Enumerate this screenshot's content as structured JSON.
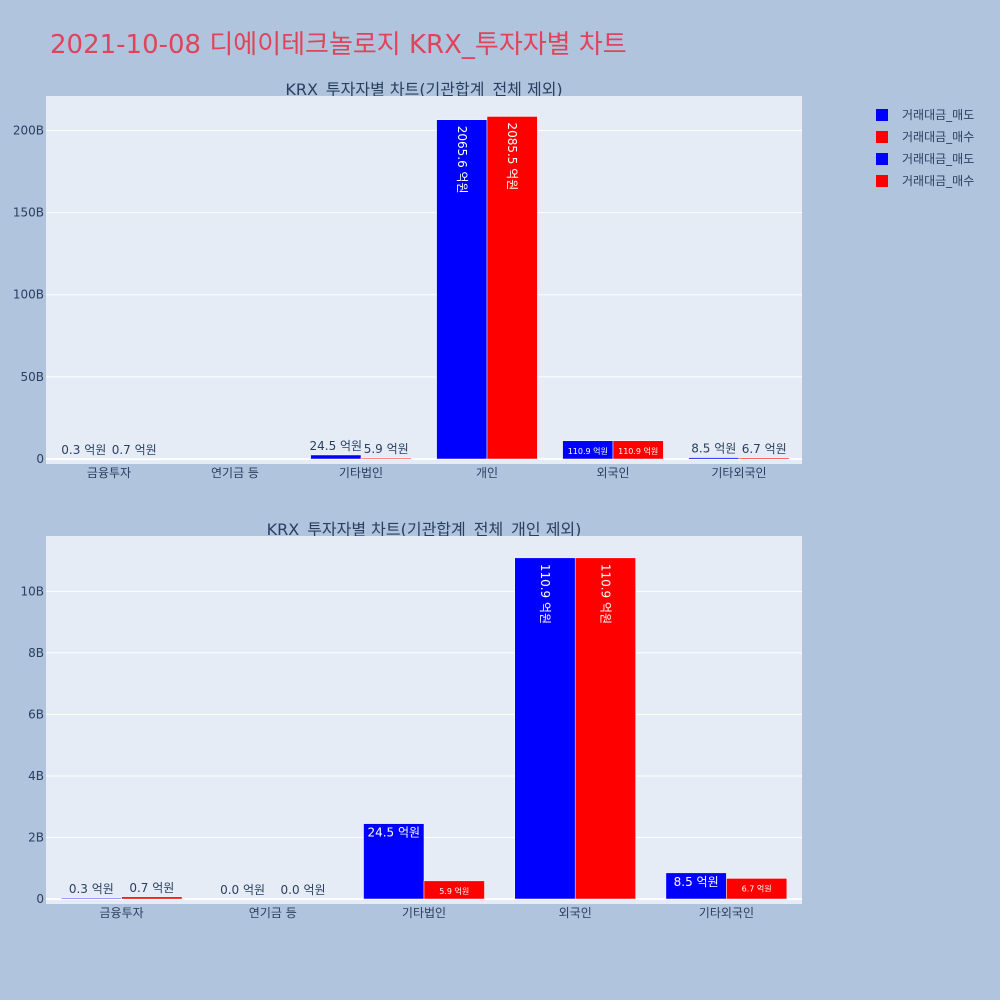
{
  "page_title": "2021-10-08 디에이테크놀로지 KRX_투자자별 차트",
  "colors": {
    "sell": "#0000ff",
    "buy": "#ff0000",
    "plot_bg": "#e5ecf6",
    "page_bg": "#b0c4de",
    "title": "#e0445a"
  },
  "legend": {
    "placement": "top-right",
    "entries": [
      {
        "label": "거래대금_매도",
        "color": "#0000ff"
      },
      {
        "label": "거래대금_매수",
        "color": "#ff0000"
      },
      {
        "label": "거래대금_매도",
        "color": "#0000ff"
      },
      {
        "label": "거래대금_매수",
        "color": "#ff0000"
      }
    ]
  },
  "chart_data": [
    {
      "type": "bar",
      "title": "KRX_투자자별 차트(기관합계_전체 제외)",
      "categories": [
        "금융투자",
        "연기금 등",
        "기타법인",
        "개인",
        "외국인",
        "기타외국인"
      ],
      "series": [
        {
          "name": "거래대금_매도",
          "values": [
            0.03,
            0,
            2.45,
            206.56,
            11.09,
            0.85
          ],
          "labels": [
            "0.3 억원",
            "",
            "24.5 억원",
            "2065.6 억원",
            "110.9 억원",
            "8.5 억원"
          ]
        },
        {
          "name": "거래대금_매수",
          "values": [
            0.07,
            0,
            0.59,
            208.55,
            11.09,
            0.67
          ],
          "labels": [
            "0.7 억원",
            "",
            "5.9 억원",
            "2085.5 억원",
            "110.9 억원",
            "6.7 억원"
          ]
        }
      ],
      "yticks": [
        0,
        50,
        100,
        150,
        200
      ],
      "ytick_labels": [
        "0",
        "50B",
        "100B",
        "150B",
        "200B"
      ],
      "ylim": [
        0,
        221
      ],
      "grid": true
    },
    {
      "type": "bar",
      "title": "KRX_투자자별 차트(기관합계_전체_개인 제외)",
      "categories": [
        "금융투자",
        "연기금 등",
        "기타법인",
        "외국인",
        "기타외국인"
      ],
      "series": [
        {
          "name": "거래대금_매도",
          "values": [
            0.03,
            0,
            2.45,
            11.09,
            0.85
          ],
          "labels": [
            "0.3 억원",
            "0.0 억원",
            "24.5 억원",
            "110.9 억원",
            "8.5 억원"
          ]
        },
        {
          "name": "거래대금_매수",
          "values": [
            0.07,
            0,
            0.59,
            11.09,
            0.67
          ],
          "labels": [
            "0.7 억원",
            "0.0 억원",
            "5.9 억원",
            "110.9 억원",
            "6.7 억원"
          ]
        }
      ],
      "yticks": [
        0,
        2,
        4,
        6,
        8,
        10
      ],
      "ytick_labels": [
        "0",
        "2B",
        "4B",
        "6B",
        "8B",
        "10B"
      ],
      "ylim": [
        0,
        11.8
      ],
      "grid": true
    }
  ]
}
